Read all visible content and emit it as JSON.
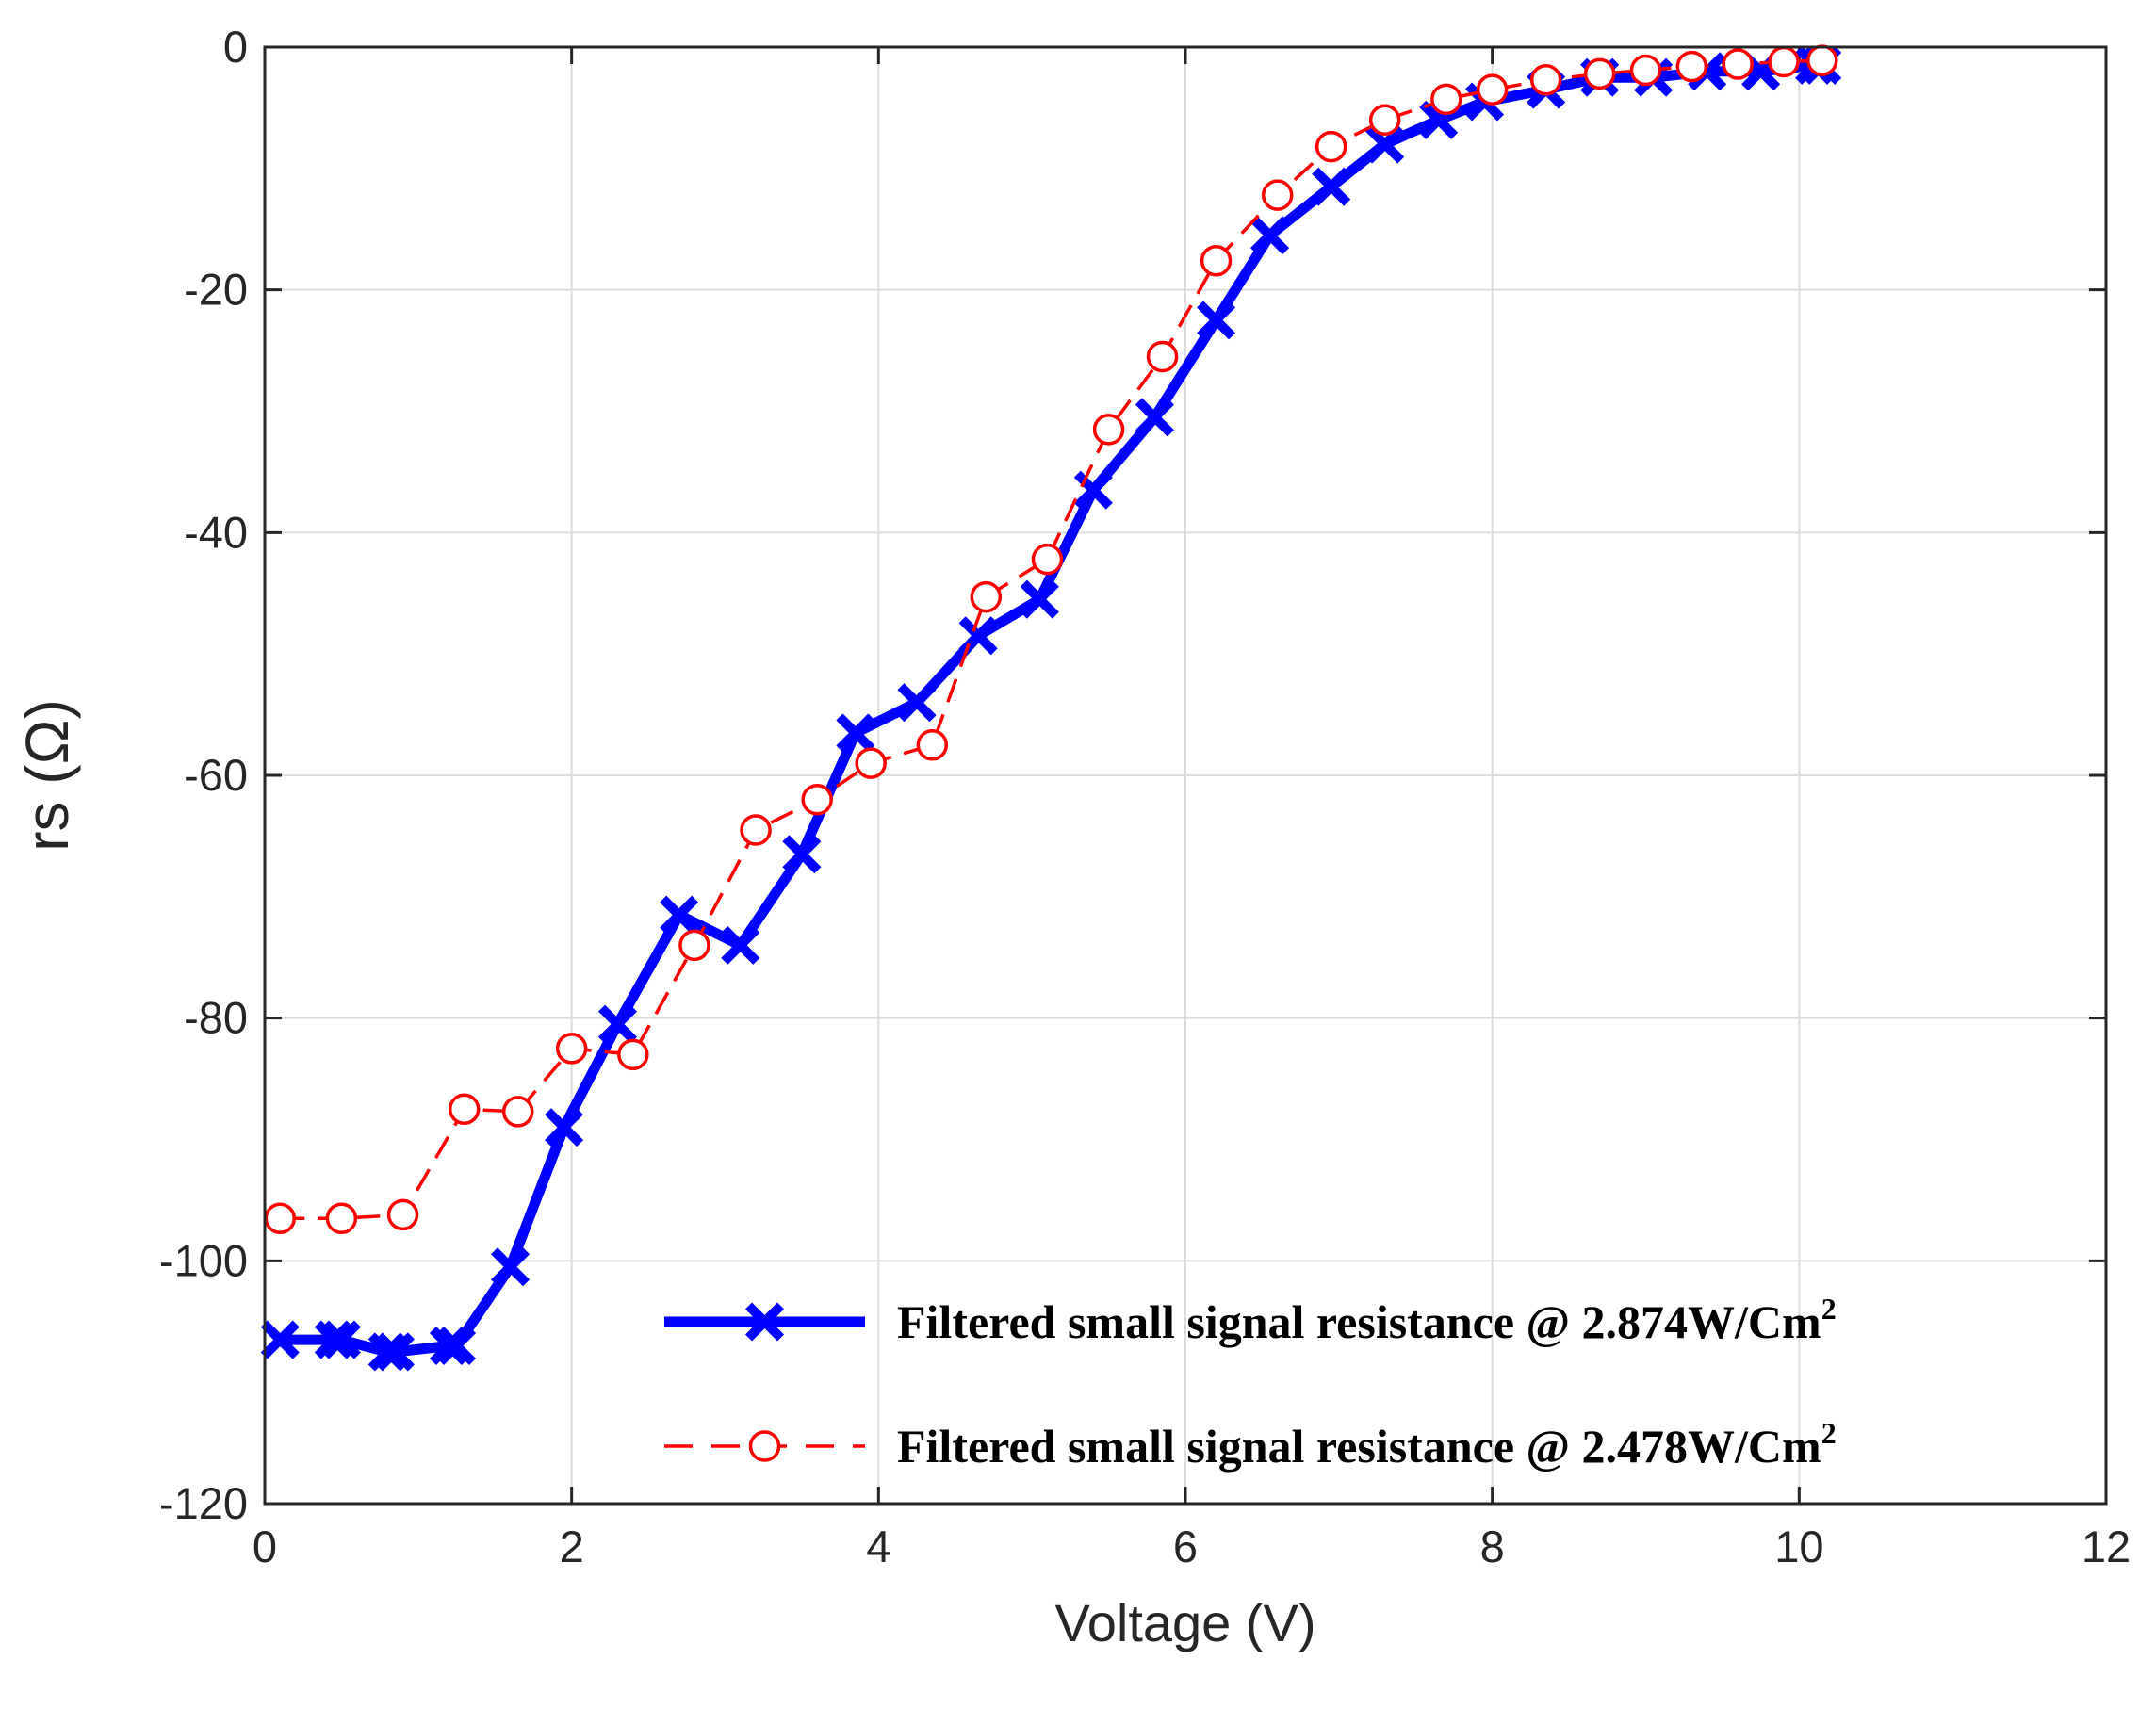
{
  "chart_data": {
    "type": "line",
    "title": "",
    "xlabel": "Voltage (V)",
    "ylabel": "rs (Ω)",
    "xlim": [
      0,
      12
    ],
    "ylim": [
      -120,
      0
    ],
    "xticks": [
      "0",
      "2",
      "4",
      "6",
      "8",
      "10",
      "12"
    ],
    "yticks": [
      "0",
      "-20",
      "-40",
      "-60",
      "-80",
      "-100",
      "-120"
    ],
    "grid": true,
    "legend_position": "bottom-right",
    "series": [
      {
        "name": "Filtered small signal resistance @ 2.874W/Cm²",
        "legend_text": "Filtered small signal resistance @ 2.874W/Cm",
        "legend_sup": "2",
        "color": "#0000ff",
        "line_style": "solid",
        "marker": "x",
        "x": [
          0.1,
          0.45,
          0.5,
          0.8,
          0.85,
          1.2,
          1.25,
          1.6,
          1.95,
          2.3,
          2.7,
          3.1,
          3.5,
          3.85,
          4.25,
          4.65,
          5.05,
          5.4,
          5.8,
          6.2,
          6.55,
          6.95,
          7.3,
          7.65,
          7.95,
          8.35,
          8.7,
          9.05,
          9.4,
          9.75,
          10.1,
          10.15
        ],
        "y": [
          -106.5,
          -106.5,
          -106.5,
          -107.5,
          -107.5,
          -107,
          -107,
          -100.5,
          -89,
          -80.5,
          -71.5,
          -74,
          -66.5,
          -56.5,
          -54,
          -48.5,
          -45.5,
          -36.5,
          -30.5,
          -22.5,
          -15.5,
          -11.5,
          -8,
          -6,
          -4.5,
          -3.5,
          -2.5,
          -2.5,
          -2,
          -2,
          -1.5,
          -1.5
        ]
      },
      {
        "name": "Filtered small signal resistance @ 2.478W/Cm²",
        "legend_text": "Filtered small signal resistance @ 2.478W/Cm",
        "legend_sup": "2",
        "color": "#ff0000",
        "line_style": "dashed",
        "marker": "o",
        "x": [
          0.1,
          0.5,
          0.9,
          1.3,
          1.65,
          2.0,
          2.4,
          2.8,
          3.2,
          3.6,
          3.95,
          4.35,
          4.7,
          5.1,
          5.5,
          5.85,
          6.2,
          6.6,
          6.95,
          7.3,
          7.7,
          8.0,
          8.35,
          8.7,
          9.0,
          9.3,
          9.6,
          9.9,
          10.15
        ],
        "y": [
          -96.5,
          -96.5,
          -96.2,
          -87.5,
          -87.7,
          -82.5,
          -83,
          -74,
          -64.5,
          -62,
          -59,
          -57.5,
          -45.3,
          -42.2,
          -31.5,
          -25.5,
          -17.6,
          -12.2,
          -8.2,
          -6,
          -4.3,
          -3.5,
          -2.7,
          -2.2,
          -1.9,
          -1.6,
          -1.4,
          -1.2,
          -1.1
        ]
      }
    ]
  }
}
